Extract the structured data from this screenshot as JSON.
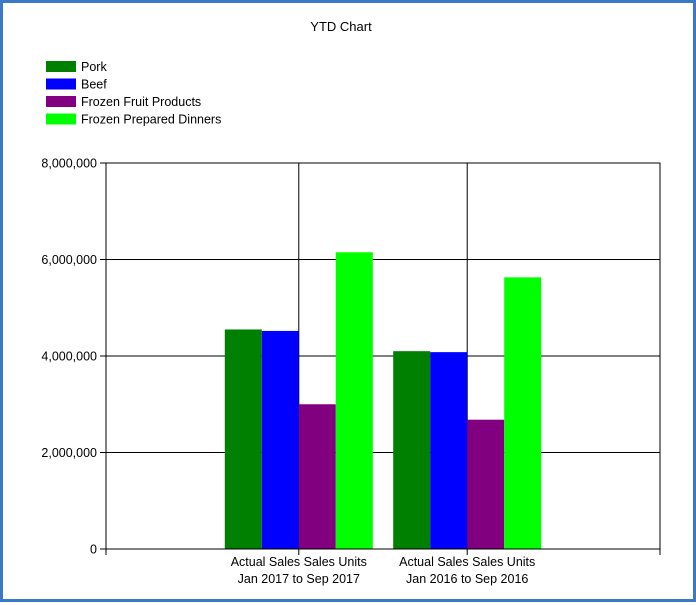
{
  "chart_data": {
    "type": "bar",
    "title": "YTD Chart",
    "categories": [
      [
        "Actual Sales Sales Units",
        "Jan 2017 to Sep 2017"
      ],
      [
        "Actual Sales Sales Units",
        "Jan 2016 to Sep 2016"
      ]
    ],
    "series": [
      {
        "name": "Pork",
        "color": "#008000",
        "values": [
          4550000,
          4100000
        ]
      },
      {
        "name": "Beef",
        "color": "#0000ff",
        "values": [
          4520000,
          4080000
        ]
      },
      {
        "name": "Frozen Fruit Products",
        "color": "#800080",
        "values": [
          3000000,
          2680000
        ]
      },
      {
        "name": "Frozen Prepared Dinners",
        "color": "#00ff00",
        "values": [
          6150000,
          5630000
        ]
      }
    ],
    "ylim": [
      0,
      8000000
    ],
    "yticks": [
      0,
      2000000,
      4000000,
      6000000,
      8000000
    ],
    "ytick_labels": [
      "0",
      "2,000,000",
      "4,000,000",
      "6,000,000",
      "8,000,000"
    ],
    "grid": true,
    "legend_position": "top-left"
  }
}
